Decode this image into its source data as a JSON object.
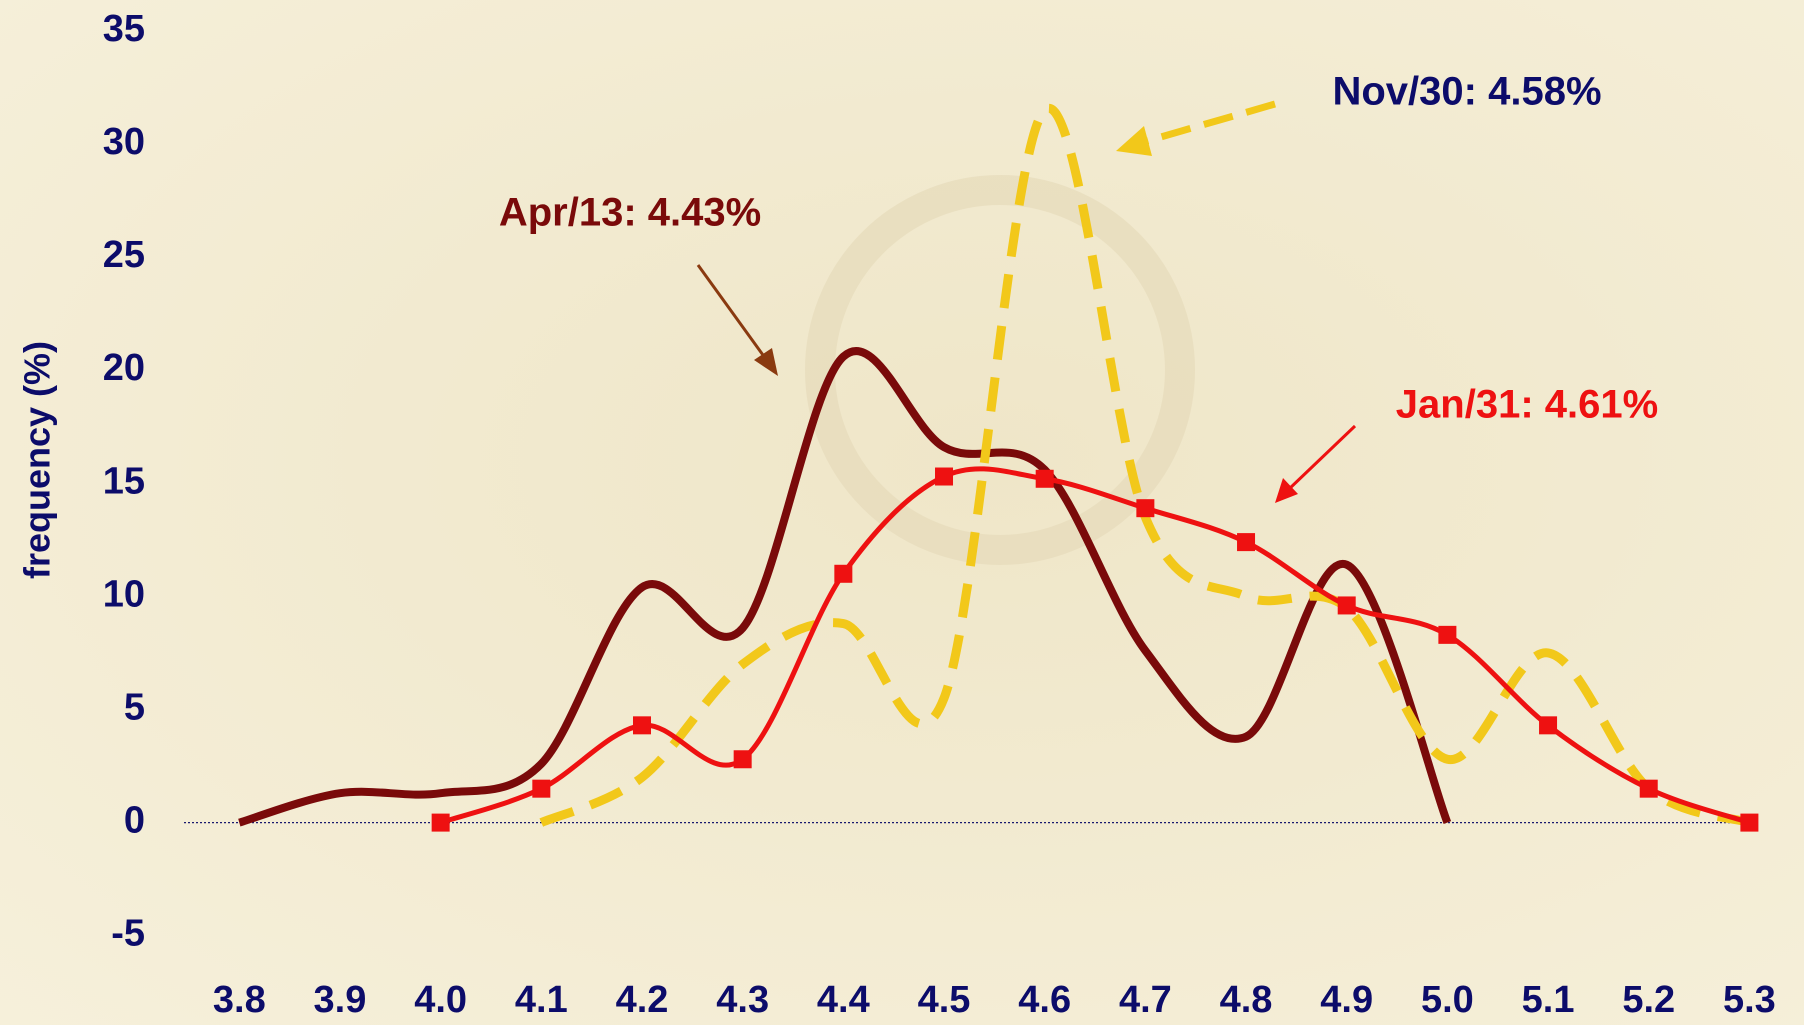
{
  "chart_data": {
    "type": "line",
    "ylabel": "frequency (%)",
    "x": [
      3.8,
      3.9,
      4,
      4.1,
      4.2,
      4.3,
      4.4,
      4.5,
      4.6,
      4.7,
      4.8,
      4.9,
      5,
      5.1,
      5.2,
      5.3
    ],
    "series": [
      {
        "name": "Apr/13: 4.43%",
        "color": "#7a0a0a",
        "style": "solid",
        "values": [
          0,
          1.3,
          1.3,
          2.6,
          10.4,
          8.6,
          20.6,
          16.6,
          15.6,
          7.6,
          3.8,
          11.4,
          0,
          null,
          null,
          null
        ]
      },
      {
        "name": "Nov/30: 4.58%",
        "color": "#f2c81a",
        "style": "dashed",
        "values": [
          null,
          null,
          null,
          0,
          2,
          7,
          8.8,
          5.5,
          31.5,
          13.5,
          10,
          9.5,
          2.8,
          7.5,
          1.5,
          0
        ]
      },
      {
        "name": "Jan/31: 4.61%",
        "color": "#ee1111",
        "style": "markers",
        "values": [
          null,
          null,
          0,
          1.5,
          4.3,
          2.8,
          11,
          15.3,
          15.2,
          13.9,
          12.4,
          9.6,
          8.3,
          4.3,
          1.5,
          0
        ]
      }
    ],
    "xlim": [
      3.8,
      5.3
    ],
    "xticks": [
      3.8,
      3.9,
      {
        "value": 4,
        "label": "4.0"
      },
      4.1,
      4.2,
      4.3,
      4.4,
      4.5,
      4.6,
      4.7,
      4.8,
      4.9,
      {
        "value": 5,
        "label": "5.0"
      },
      5.1,
      5.2,
      5.3
    ],
    "ylim": [
      -5,
      35
    ],
    "yticks": [
      -5,
      0,
      5,
      10,
      15,
      20,
      25,
      30,
      35
    ]
  }
}
